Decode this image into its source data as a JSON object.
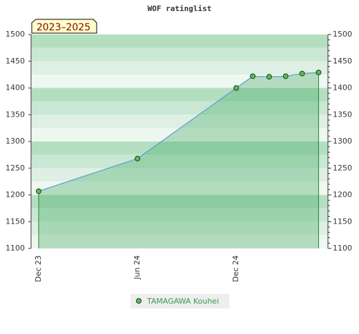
{
  "chart_data": {
    "type": "line",
    "title": "WOF ratinglist",
    "badge": "2023–2025",
    "x": [
      "Dec 23",
      "Jun 24",
      "Dec 24",
      "Jan 25",
      "Feb 25",
      "Mar 25",
      "Apr 25",
      "May 25"
    ],
    "series": [
      {
        "name": "TAMAGAWA Kouhei",
        "color": "#5b9bd5",
        "marker_color": "#5cb85c",
        "values": [
          1207,
          1268,
          1400,
          1422,
          1421,
          1422,
          1427,
          1429
        ]
      }
    ],
    "xticks": [
      "Dec 23",
      "Jun 24",
      "Dec 24"
    ],
    "ylim": [
      1100,
      1500
    ],
    "yticks": [
      1100,
      1150,
      1200,
      1250,
      1300,
      1350,
      1400,
      1450,
      1500
    ]
  }
}
